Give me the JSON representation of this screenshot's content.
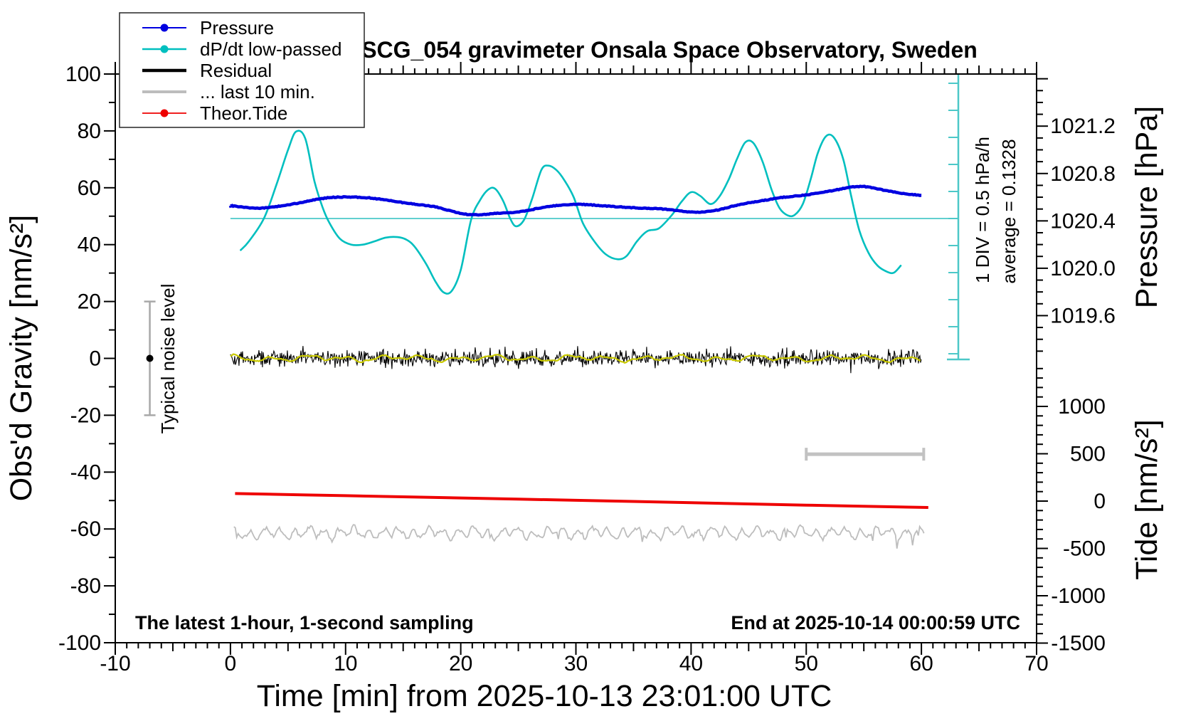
{
  "title": "SCG_054 gravimeter Onsala Space Observatory, Sweden",
  "annotations": {
    "div_scale": "1 DIV = 0.5 hPa/h",
    "average": "average = 0.1328",
    "noise_level": "Typical noise level",
    "sampling": "The latest 1-hour, 1-second sampling",
    "end_time": "End at 2025-10-14 00:00:59 UTC"
  },
  "legend": {
    "items": [
      {
        "label": "Pressure",
        "color": "#0000e0",
        "marker": "dot",
        "line_width": 2
      },
      {
        "label": "dP/dt low-passed",
        "color": "#00bfbf",
        "marker": "dot",
        "line_width": 2.4
      },
      {
        "label": "Residual",
        "color": "#000000",
        "marker": "none",
        "line_width": 4.5
      },
      {
        "label": "... last 10 min.",
        "color": "#bdbdbd",
        "marker": "none",
        "line_width": 4
      },
      {
        "label": "Theor.Tide",
        "color": "#ee0000",
        "marker": "dot",
        "line_width": 1.8
      }
    ]
  },
  "axes": {
    "x": {
      "title": "Time [min] from 2025-10-13 23:01:00 UTC",
      "min": -10,
      "max": 70,
      "major_tick_step": 10,
      "mid_tick_step": 5,
      "minor_tick_step": 1,
      "tick_labels": [
        "-10",
        "0",
        "10",
        "20",
        "30",
        "40",
        "50",
        "60",
        "70"
      ],
      "tick_values": [
        -10,
        0,
        10,
        20,
        30,
        40,
        50,
        60,
        70
      ]
    },
    "gravity": {
      "title": "Obs'd Gravity [nm/s²]",
      "min": -100,
      "max": 100,
      "major_tick_step": 20,
      "minor_tick_step": 10,
      "tick_labels": [
        "-100",
        "-80",
        "-60",
        "-40",
        "-20",
        "0",
        "20",
        "40",
        "60",
        "80",
        "100"
      ],
      "tick_values": [
        -100,
        -80,
        -60,
        -40,
        -20,
        0,
        20,
        40,
        60,
        80,
        100
      ]
    },
    "pressure": {
      "title": "Pressure [hPa]",
      "range": [
        1019.23,
        1021.64
      ],
      "major_tick_step": 0.4,
      "minor_tick_step": 0.1,
      "tick_labels": [
        "1021.2",
        "1020.8",
        "1020.4",
        "1020.0",
        "1019.6"
      ],
      "tick_values": [
        1021.2,
        1020.8,
        1020.4,
        1020.0,
        1019.6
      ]
    },
    "tide": {
      "title": "Tide [nm/s²]",
      "range": [
        -1500,
        1500
      ],
      "major_tick_step": 500,
      "minor_tick_step": 100,
      "tick_labels": [
        "1000",
        "500",
        "0",
        "-500",
        "-1000",
        "-1500"
      ],
      "tick_values": [
        1000,
        500,
        0,
        -500,
        -1000,
        -1500
      ]
    }
  },
  "chart_data": {
    "type": "line",
    "x_unit": "minutes from 2025-10-13 23:01:00 UTC",
    "grid": false,
    "legend_position": "top-left",
    "series": [
      {
        "name": "Pressure",
        "axis": "pressure",
        "unit": "hPa",
        "color": "#0000e0",
        "width": 4.5,
        "points": [
          [
            0,
            1020.528
          ],
          [
            1,
            1020.516
          ],
          [
            2,
            1020.507
          ],
          [
            3,
            1020.509
          ],
          [
            4,
            1020.521
          ],
          [
            5,
            1020.535
          ],
          [
            6,
            1020.552
          ],
          [
            7,
            1020.573
          ],
          [
            8,
            1020.59
          ],
          [
            9,
            1020.6
          ],
          [
            10,
            1020.602
          ],
          [
            11,
            1020.6
          ],
          [
            12,
            1020.595
          ],
          [
            13,
            1020.583
          ],
          [
            14,
            1020.569
          ],
          [
            15,
            1020.554
          ],
          [
            16,
            1020.542
          ],
          [
            17,
            1020.53
          ],
          [
            18,
            1020.516
          ],
          [
            19,
            1020.487
          ],
          [
            20,
            1020.461
          ],
          [
            21,
            1020.449
          ],
          [
            22,
            1020.454
          ],
          [
            23,
            1020.463
          ],
          [
            24,
            1020.468
          ],
          [
            25,
            1020.475
          ],
          [
            26,
            1020.492
          ],
          [
            27,
            1020.511
          ],
          [
            28,
            1020.526
          ],
          [
            29,
            1020.535
          ],
          [
            30,
            1020.54
          ],
          [
            31,
            1020.537
          ],
          [
            32,
            1020.53
          ],
          [
            33,
            1020.523
          ],
          [
            34,
            1020.516
          ],
          [
            35,
            1020.511
          ],
          [
            36,
            1020.507
          ],
          [
            37,
            1020.504
          ],
          [
            38,
            1020.497
          ],
          [
            39,
            1020.485
          ],
          [
            40,
            1020.475
          ],
          [
            41,
            1020.473
          ],
          [
            42,
            1020.485
          ],
          [
            43,
            1020.507
          ],
          [
            44,
            1020.535
          ],
          [
            45,
            1020.552
          ],
          [
            46,
            1020.569
          ],
          [
            47,
            1020.583
          ],
          [
            48,
            1020.6
          ],
          [
            49,
            1020.609
          ],
          [
            50,
            1020.619
          ],
          [
            51,
            1020.633
          ],
          [
            52,
            1020.65
          ],
          [
            53,
            1020.669
          ],
          [
            54,
            1020.688
          ],
          [
            55,
            1020.693
          ],
          [
            56,
            1020.674
          ],
          [
            57,
            1020.655
          ],
          [
            58,
            1020.636
          ],
          [
            59,
            1020.624
          ],
          [
            60,
            1020.616
          ]
        ]
      },
      {
        "name": "dP/dt low-passed",
        "axis": "dpdt",
        "unit": "hPa/h",
        "color": "#00bfbf",
        "width": 2.6,
        "points": [
          [
            0.9,
            -0.45
          ],
          [
            1.6,
            -0.29
          ],
          [
            2.9,
            0.13
          ],
          [
            4,
            0.76
          ],
          [
            5,
            1.4
          ],
          [
            5.7,
            1.74
          ],
          [
            6.5,
            1.61
          ],
          [
            7.3,
            0.82
          ],
          [
            8,
            0.34
          ],
          [
            8.6,
            0.05
          ],
          [
            9.5,
            -0.24
          ],
          [
            10.5,
            -0.35
          ],
          [
            11.5,
            -0.35
          ],
          [
            12.5,
            -0.29
          ],
          [
            13.5,
            -0.22
          ],
          [
            14.5,
            -0.21
          ],
          [
            15.3,
            -0.26
          ],
          [
            16,
            -0.39
          ],
          [
            17,
            -0.71
          ],
          [
            17.8,
            -1.03
          ],
          [
            18.5,
            -1.23
          ],
          [
            19.2,
            -1.21
          ],
          [
            20,
            -0.82
          ],
          [
            20.9,
            0.11
          ],
          [
            21.7,
            0.48
          ],
          [
            22.4,
            0.67
          ],
          [
            23,
            0.68
          ],
          [
            23.7,
            0.45
          ],
          [
            24.3,
            0.13
          ],
          [
            24.8,
            -0.01
          ],
          [
            25.5,
            0.11
          ],
          [
            26.2,
            0.5
          ],
          [
            27,
            1.03
          ],
          [
            27.6,
            1.11
          ],
          [
            28.3,
            1.03
          ],
          [
            29,
            0.84
          ],
          [
            29.8,
            0.53
          ],
          [
            30.6,
            0.05
          ],
          [
            31.6,
            -0.29
          ],
          [
            32.6,
            -0.53
          ],
          [
            33.6,
            -0.62
          ],
          [
            34.4,
            -0.56
          ],
          [
            35.3,
            -0.29
          ],
          [
            36.2,
            -0.1
          ],
          [
            37.2,
            -0.05
          ],
          [
            38.3,
            0.19
          ],
          [
            39.2,
            0.45
          ],
          [
            40,
            0.62
          ],
          [
            40.8,
            0.55
          ],
          [
            41.7,
            0.4
          ],
          [
            42.5,
            0.55
          ],
          [
            43.3,
            0.87
          ],
          [
            44,
            1.24
          ],
          [
            44.7,
            1.54
          ],
          [
            45.4,
            1.53
          ],
          [
            46.2,
            1.19
          ],
          [
            47,
            0.66
          ],
          [
            47.7,
            0.32
          ],
          [
            48.4,
            0.19
          ],
          [
            49,
            0.2
          ],
          [
            49.7,
            0.4
          ],
          [
            50.4,
            0.87
          ],
          [
            51,
            1.34
          ],
          [
            51.7,
            1.65
          ],
          [
            52.4,
            1.63
          ],
          [
            53.2,
            1.24
          ],
          [
            53.9,
            0.55
          ],
          [
            54.6,
            -0.08
          ],
          [
            55.4,
            -0.5
          ],
          [
            56.2,
            -0.74
          ],
          [
            57,
            -0.85
          ],
          [
            57.6,
            -0.87
          ],
          [
            58.2,
            -0.74
          ]
        ]
      },
      {
        "name": "Residual",
        "axis": "gravity",
        "unit": "nm/s²",
        "color": "#000000",
        "width": 1.1,
        "type": "noise",
        "center": 0,
        "typical_amplitude": 1.5,
        "spike_amplitude": 5,
        "seed": 42,
        "t_range": [
          0,
          60
        ]
      },
      {
        "name": "Residual smoothed",
        "axis": "gravity",
        "unit": "nm/s²",
        "color": "#c9c900",
        "width": 2.2,
        "type": "smooth",
        "center": 0,
        "typical_amplitude": 1.0,
        "seed": 7,
        "t_range": [
          0,
          60
        ]
      },
      {
        "name": "... last 10 min.",
        "axis": "gravity",
        "unit": "nm/s² (displayed offset)",
        "color": "#bdbdbd",
        "width": 1.8,
        "type": "smooth",
        "center": -61.4,
        "typical_amplitude": 2.3,
        "seed": 13,
        "t_range": [
          0.3,
          60.3
        ]
      },
      {
        "name": "Theor.Tide",
        "axis": "tide",
        "unit": "nm/s²",
        "color": "#ee0000",
        "width": 4,
        "points": [
          [
            0.4,
            80
          ],
          [
            10,
            57
          ],
          [
            20,
            33
          ],
          [
            30,
            8
          ],
          [
            40,
            -17
          ],
          [
            50,
            -43
          ],
          [
            60.6,
            -68
          ]
        ]
      }
    ],
    "reference": {
      "average_dpdt_line": 0.1328,
      "div_scale_hpa_per_h": 0.5,
      "noise_bar": {
        "t": -7,
        "gravity_range": [
          -20,
          20
        ],
        "color": "#a8a8a8"
      },
      "scale_bar": {
        "t_range": [
          50,
          60.2
        ],
        "gravity": -33.7,
        "color": "#c2c2c2"
      },
      "ruler_color": "#4cc8c8"
    }
  }
}
